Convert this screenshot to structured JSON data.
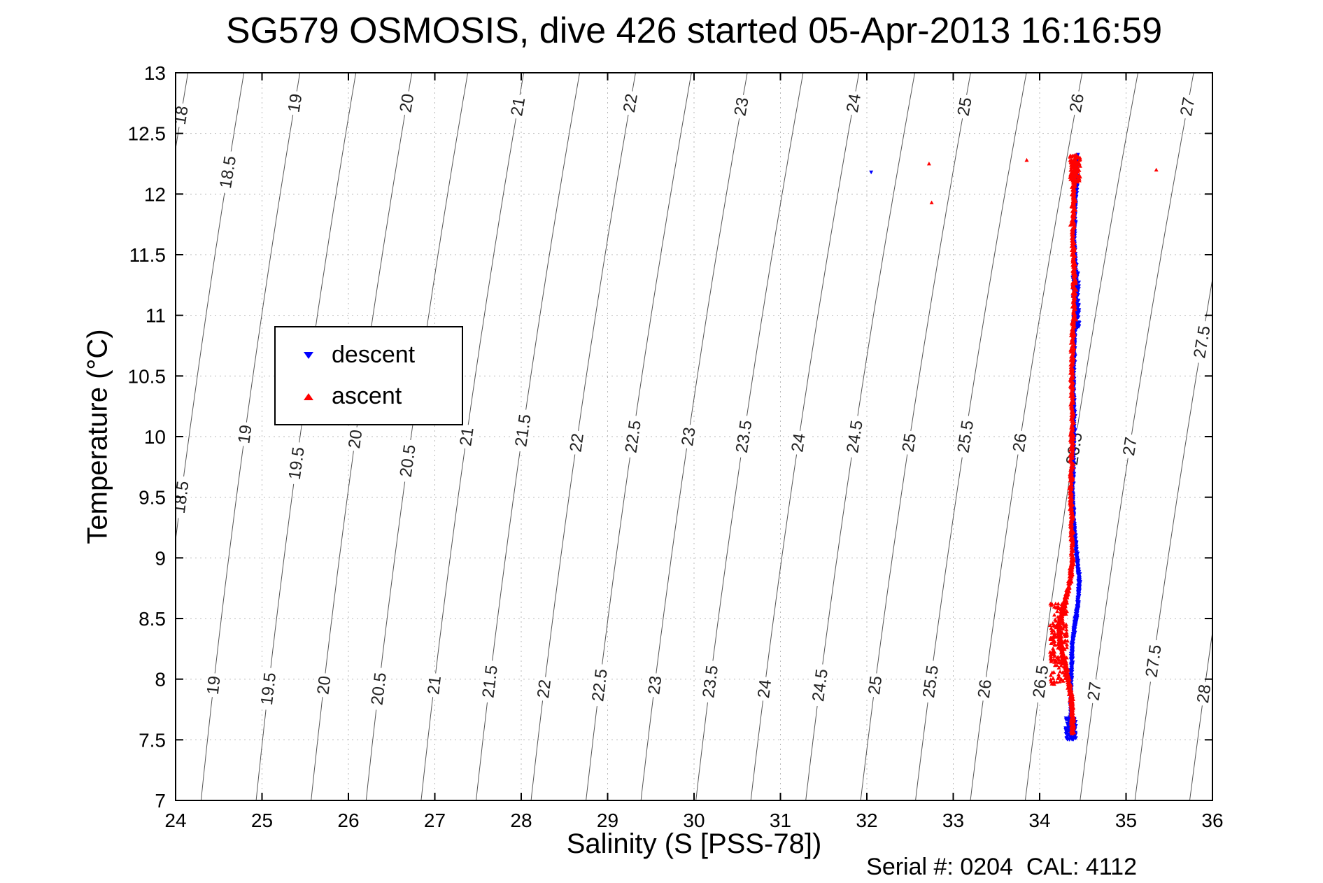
{
  "footer": {
    "serial_text": "Serial #: 0204  CAL: 4112"
  },
  "chart_data": {
    "type": "scatter",
    "title": "SG579 OSMOSIS, dive 426 started 05-Apr-2013 16:16:59",
    "xlabel": "Salinity (S [PSS-78])",
    "ylabel": "Temperature (°C)",
    "xlim": [
      24,
      36
    ],
    "ylim": [
      7,
      13
    ],
    "xticks": [
      24,
      25,
      26,
      27,
      28,
      29,
      30,
      31,
      32,
      33,
      34,
      35,
      36
    ],
    "yticks": [
      7,
      7.5,
      8,
      8.5,
      9,
      9.5,
      10,
      10.5,
      11,
      11.5,
      12,
      12.5,
      13
    ],
    "grid": true,
    "grid_color": "#b8b8b8",
    "axes_color": "#000000",
    "legend": {
      "position": "upper-left-inside",
      "entries": [
        {
          "label": "descent",
          "marker": "triangle-down",
          "color": "#0000ff"
        },
        {
          "label": "ascent",
          "marker": "triangle-up",
          "color": "#ff0000"
        }
      ]
    },
    "contours": {
      "variable": "sigma-t density isopycnals",
      "levels": [
        18,
        18.5,
        19,
        19.5,
        20,
        20.5,
        21,
        21.5,
        22,
        22.5,
        23,
        23.5,
        24,
        24.5,
        25,
        25.5,
        26,
        26.5,
        27,
        27.5,
        28
      ],
      "color": "#555555",
      "label_color": "#222222",
      "label_positions": [
        [
          18,
          12.65
        ],
        [
          19,
          12.75
        ],
        [
          20,
          12.75
        ],
        [
          21,
          12.72
        ],
        [
          22,
          12.75
        ],
        [
          23,
          12.72
        ],
        [
          24,
          12.75
        ],
        [
          25,
          12.72
        ],
        [
          26,
          12.75
        ],
        [
          27,
          12.72
        ],
        [
          18.5,
          12.18
        ],
        [
          27.5,
          10.78
        ],
        [
          18.5,
          9.5
        ],
        [
          19,
          10.02
        ],
        [
          19.5,
          9.78
        ],
        [
          20,
          9.98
        ],
        [
          20.5,
          9.8
        ],
        [
          21,
          10.0
        ],
        [
          21.5,
          10.05
        ],
        [
          22,
          9.95
        ],
        [
          22.5,
          10.0
        ],
        [
          23,
          10.0
        ],
        [
          23.5,
          10.0
        ],
        [
          24,
          9.95
        ],
        [
          24.5,
          10.0
        ],
        [
          25,
          9.95
        ],
        [
          25.5,
          10.0
        ],
        [
          26,
          9.95
        ],
        [
          26.5,
          9.9
        ],
        [
          27,
          9.92
        ],
        [
          19,
          7.95
        ],
        [
          19.5,
          7.92
        ],
        [
          20,
          7.95
        ],
        [
          20.5,
          7.92
        ],
        [
          21,
          7.95
        ],
        [
          21.5,
          7.98
        ],
        [
          22,
          7.92
        ],
        [
          22.5,
          7.95
        ],
        [
          23,
          7.95
        ],
        [
          23.5,
          7.98
        ],
        [
          24,
          7.92
        ],
        [
          24.5,
          7.95
        ],
        [
          25,
          7.95
        ],
        [
          25.5,
          7.98
        ],
        [
          26,
          7.92
        ],
        [
          26.5,
          7.98
        ],
        [
          27,
          7.9
        ],
        [
          27.5,
          8.15
        ],
        [
          28,
          7.88
        ]
      ]
    },
    "series": [
      {
        "name": "descent",
        "color": "#0000ff",
        "marker": "triangle-down",
        "marker_px": 3,
        "profile_TS": [
          [
            12.32,
            34.43
          ],
          [
            12.12,
            34.43
          ],
          [
            11.9,
            34.41
          ],
          [
            11.6,
            34.4
          ],
          [
            11.35,
            34.42
          ],
          [
            11.05,
            34.42
          ],
          [
            10.75,
            34.4
          ],
          [
            10.45,
            34.39
          ],
          [
            10.15,
            34.4
          ],
          [
            9.85,
            34.39
          ],
          [
            9.55,
            34.38
          ],
          [
            9.25,
            34.4
          ],
          [
            9.0,
            34.43
          ],
          [
            8.8,
            34.46
          ],
          [
            8.6,
            34.44
          ],
          [
            8.45,
            34.41
          ],
          [
            8.3,
            34.38
          ],
          [
            8.1,
            34.37
          ],
          [
            7.9,
            34.36
          ],
          [
            7.7,
            34.36
          ],
          [
            7.55,
            34.36
          ]
        ],
        "points_per_segment": 60,
        "s_jitter": 0.012,
        "t_jitter": 0.012,
        "blobs": [
          {
            "t": [
              7.5,
              7.68
            ],
            "s": [
              34.3,
              34.42
            ],
            "count": 80
          },
          {
            "t": [
              10.9,
              11.35
            ],
            "s": [
              34.38,
              34.46
            ],
            "count": 120
          }
        ],
        "outliers_TS": [
          [
            12.18,
            32.05
          ]
        ]
      },
      {
        "name": "ascent",
        "color": "#ff0000",
        "marker": "triangle-up",
        "marker_px": 3,
        "profile_TS": [
          [
            12.32,
            34.41
          ],
          [
            12.15,
            34.4
          ],
          [
            11.9,
            34.39
          ],
          [
            11.6,
            34.38
          ],
          [
            11.35,
            34.4
          ],
          [
            11.05,
            34.4
          ],
          [
            10.75,
            34.38
          ],
          [
            10.45,
            34.37
          ],
          [
            10.15,
            34.38
          ],
          [
            9.85,
            34.37
          ],
          [
            9.55,
            34.36
          ],
          [
            9.25,
            34.37
          ],
          [
            9.0,
            34.38
          ],
          [
            8.8,
            34.35
          ],
          [
            8.6,
            34.28
          ],
          [
            8.45,
            34.22
          ],
          [
            8.3,
            34.24
          ],
          [
            8.15,
            34.28
          ],
          [
            8.0,
            34.33
          ],
          [
            7.85,
            34.37
          ],
          [
            7.7,
            34.38
          ],
          [
            7.55,
            34.38
          ]
        ],
        "points_per_segment": 60,
        "s_jitter": 0.02,
        "t_jitter": 0.012,
        "blobs": [
          {
            "t": [
              7.95,
              8.65
            ],
            "s": [
              34.12,
              34.33
            ],
            "count": 160
          },
          {
            "t": [
              12.1,
              12.32
            ],
            "s": [
              34.35,
              34.47
            ],
            "count": 100
          }
        ],
        "outliers_TS": [
          [
            12.25,
            32.72
          ],
          [
            12.28,
            33.85
          ],
          [
            12.2,
            35.35
          ],
          [
            11.93,
            32.75
          ]
        ]
      }
    ],
    "seed": 579
  }
}
